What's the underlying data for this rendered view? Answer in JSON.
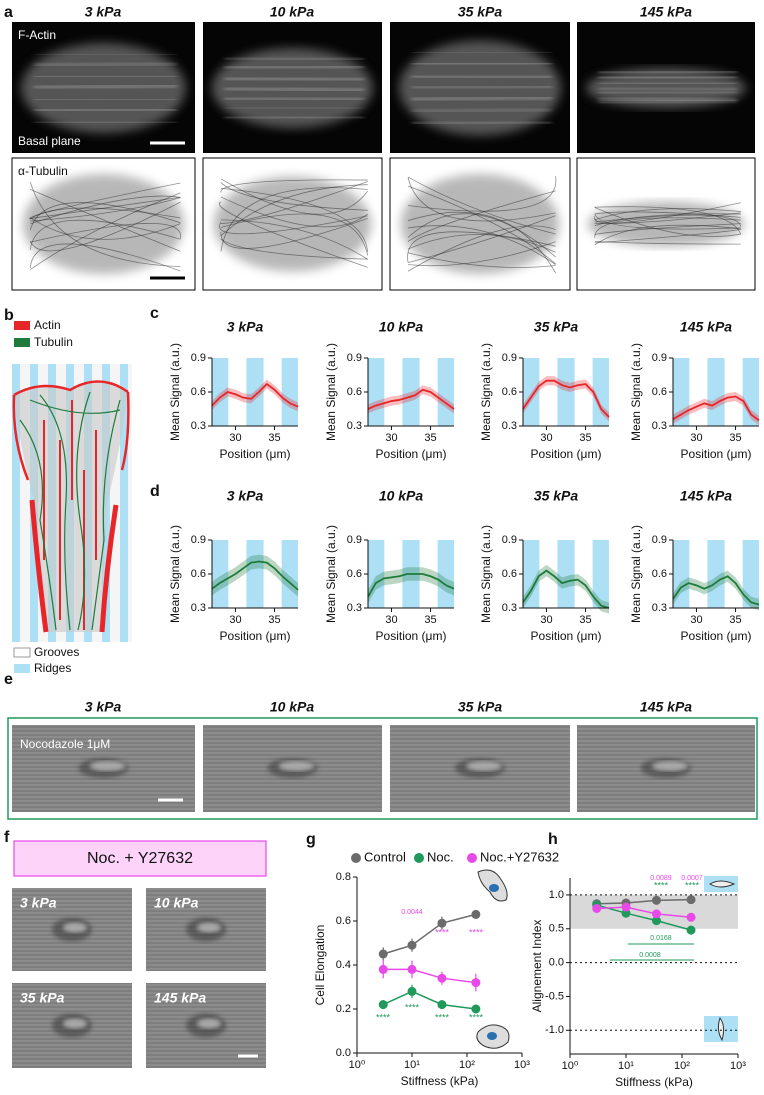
{
  "panel_labels": [
    "a",
    "b",
    "c",
    "d",
    "e",
    "f",
    "g",
    "h"
  ],
  "stiffness_labels": [
    "3 kPa",
    "10 kPa",
    "35 kPa",
    "145 kPa"
  ],
  "panel_a": {
    "actin_label": "F-Actin",
    "plane_label": "Basal plane",
    "tubulin_label": "α-Tubulin"
  },
  "panel_b": {
    "legend": [
      "Actin",
      "Tubulin",
      "Grooves",
      "Ridges"
    ]
  },
  "panel_e": {
    "label": "Nocodazole 1μM"
  },
  "panel_f": {
    "title": "Noc. + Y27632"
  },
  "chart_data": [
    {
      "type": "line",
      "title": "3 kPa",
      "x_label": "Position (μm)",
      "y_label": "Mean Signal (a.u.)",
      "x": [
        27,
        28,
        29,
        30,
        31,
        32,
        33,
        34,
        35,
        36,
        37,
        38
      ],
      "series": [
        {
          "color": "#e8262a",
          "values": [
            0.48,
            0.55,
            0.6,
            0.58,
            0.55,
            0.54,
            0.6,
            0.67,
            0.62,
            0.55,
            0.5,
            0.47
          ],
          "errors": [
            0.04,
            0.04,
            0.04,
            0.04,
            0.04,
            0.04,
            0.04,
            0.04,
            0.04,
            0.04,
            0.04,
            0.04
          ]
        }
      ],
      "xlim": [
        27,
        38
      ],
      "xticks": [
        30,
        35
      ],
      "ylim": [
        0.3,
        0.9
      ],
      "yticks": [
        0.3,
        0.6,
        0.9
      ]
    },
    {
      "type": "line",
      "title": "10 kPa",
      "x_label": "Position (μm)",
      "y_label": "Mean Signal (a.u.)",
      "x": [
        27,
        28,
        29,
        30,
        31,
        32,
        33,
        34,
        35,
        36,
        37,
        38
      ],
      "series": [
        {
          "color": "#e8262a",
          "values": [
            0.45,
            0.48,
            0.5,
            0.52,
            0.53,
            0.55,
            0.57,
            0.62,
            0.6,
            0.55,
            0.5,
            0.45
          ],
          "errors": [
            0.04,
            0.04,
            0.04,
            0.04,
            0.04,
            0.04,
            0.04,
            0.04,
            0.04,
            0.04,
            0.04,
            0.04
          ]
        }
      ],
      "xlim": [
        27,
        38
      ],
      "xticks": [
        30,
        35
      ],
      "ylim": [
        0.3,
        0.9
      ],
      "yticks": [
        0.3,
        0.6,
        0.9
      ]
    },
    {
      "type": "line",
      "title": "35 kPa",
      "x_label": "Position (μm)",
      "y_label": "Mean Signal (a.u.)",
      "x": [
        27,
        28,
        29,
        30,
        31,
        32,
        33,
        34,
        35,
        36,
        37,
        38
      ],
      "series": [
        {
          "color": "#e8262a",
          "values": [
            0.45,
            0.55,
            0.65,
            0.7,
            0.7,
            0.66,
            0.64,
            0.66,
            0.67,
            0.6,
            0.45,
            0.38
          ],
          "errors": [
            0.04,
            0.04,
            0.04,
            0.04,
            0.04,
            0.04,
            0.04,
            0.04,
            0.04,
            0.04,
            0.04,
            0.04
          ]
        }
      ],
      "xlim": [
        27,
        38
      ],
      "xticks": [
        30,
        35
      ],
      "ylim": [
        0.3,
        0.9
      ],
      "yticks": [
        0.3,
        0.6,
        0.9
      ]
    },
    {
      "type": "line",
      "title": "145 kPa",
      "x_label": "Position (μm)",
      "y_label": "Mean Signal (a.u.)",
      "x": [
        27,
        28,
        29,
        30,
        31,
        32,
        33,
        34,
        35,
        36,
        37,
        38
      ],
      "series": [
        {
          "color": "#e8262a",
          "values": [
            0.36,
            0.4,
            0.44,
            0.47,
            0.5,
            0.48,
            0.52,
            0.55,
            0.56,
            0.52,
            0.4,
            0.35
          ],
          "errors": [
            0.04,
            0.04,
            0.04,
            0.04,
            0.04,
            0.04,
            0.04,
            0.04,
            0.04,
            0.04,
            0.04,
            0.04
          ]
        }
      ],
      "xlim": [
        27,
        38
      ],
      "xticks": [
        30,
        35
      ],
      "ylim": [
        0.3,
        0.9
      ],
      "yticks": [
        0.3,
        0.6,
        0.9
      ]
    },
    {
      "type": "line",
      "title": "3 kPa",
      "x_label": "Position (μm)",
      "y_label": "Mean Signal (a.u.)",
      "x": [
        27,
        28,
        29,
        30,
        31,
        32,
        33,
        34,
        35,
        36,
        37,
        38
      ],
      "series": [
        {
          "color": "#1e7b3c",
          "values": [
            0.47,
            0.52,
            0.56,
            0.6,
            0.65,
            0.7,
            0.71,
            0.7,
            0.65,
            0.58,
            0.52,
            0.46
          ],
          "errors": [
            0.06,
            0.06,
            0.06,
            0.06,
            0.06,
            0.06,
            0.06,
            0.06,
            0.06,
            0.06,
            0.06,
            0.06
          ]
        }
      ],
      "xlim": [
        27,
        38
      ],
      "xticks": [
        30,
        35
      ],
      "ylim": [
        0.3,
        0.9
      ],
      "yticks": [
        0.3,
        0.6,
        0.9
      ]
    },
    {
      "type": "line",
      "title": "10 kPa",
      "x_label": "Position (μm)",
      "y_label": "Mean Signal (a.u.)",
      "x": [
        27,
        28,
        29,
        30,
        31,
        32,
        33,
        34,
        35,
        36,
        37,
        38
      ],
      "series": [
        {
          "color": "#1e7b3c",
          "values": [
            0.4,
            0.52,
            0.56,
            0.57,
            0.58,
            0.6,
            0.6,
            0.6,
            0.58,
            0.55,
            0.5,
            0.47
          ],
          "errors": [
            0.06,
            0.06,
            0.06,
            0.06,
            0.06,
            0.06,
            0.06,
            0.06,
            0.06,
            0.06,
            0.06,
            0.06
          ]
        }
      ],
      "xlim": [
        27,
        38
      ],
      "xticks": [
        30,
        35
      ],
      "ylim": [
        0.3,
        0.9
      ],
      "yticks": [
        0.3,
        0.6,
        0.9
      ]
    },
    {
      "type": "line",
      "title": "35 kPa",
      "x_label": "Position (μm)",
      "y_label": "Mean Signal (a.u.)",
      "x": [
        27,
        28,
        29,
        30,
        31,
        32,
        33,
        34,
        35,
        36,
        37,
        38
      ],
      "series": [
        {
          "color": "#1e7b3c",
          "values": [
            0.35,
            0.45,
            0.58,
            0.63,
            0.58,
            0.52,
            0.54,
            0.55,
            0.5,
            0.4,
            0.32,
            0.3
          ],
          "errors": [
            0.05,
            0.05,
            0.05,
            0.05,
            0.05,
            0.05,
            0.05,
            0.05,
            0.05,
            0.05,
            0.05,
            0.05
          ]
        }
      ],
      "xlim": [
        27,
        38
      ],
      "xticks": [
        30,
        35
      ],
      "ylim": [
        0.3,
        0.9
      ],
      "yticks": [
        0.3,
        0.6,
        0.9
      ]
    },
    {
      "type": "line",
      "title": "145 kPa",
      "x_label": "Position (μm)",
      "y_label": "Mean Signal (a.u.)",
      "x": [
        27,
        28,
        29,
        30,
        31,
        32,
        33,
        34,
        35,
        36,
        37,
        38
      ],
      "series": [
        {
          "color": "#1e7b3c",
          "values": [
            0.38,
            0.48,
            0.52,
            0.5,
            0.47,
            0.5,
            0.55,
            0.58,
            0.52,
            0.42,
            0.35,
            0.33
          ],
          "errors": [
            0.05,
            0.05,
            0.05,
            0.05,
            0.05,
            0.05,
            0.05,
            0.05,
            0.05,
            0.05,
            0.05,
            0.05
          ]
        }
      ],
      "xlim": [
        27,
        38
      ],
      "xticks": [
        30,
        35
      ],
      "ylim": [
        0.3,
        0.9
      ],
      "yticks": [
        0.3,
        0.6,
        0.9
      ]
    },
    {
      "type": "scatter",
      "x_label": "Stiffness (kPa)",
      "y_label": "Cell Elongation",
      "log_x": true,
      "x": [
        3,
        10,
        35,
        145
      ],
      "series": [
        {
          "name": "Control",
          "color": "#6b6b6b",
          "values": [
            0.45,
            0.49,
            0.59,
            0.63
          ],
          "errors": [
            0.03,
            0.03,
            0.03,
            0.02
          ]
        },
        {
          "name": "Noc.",
          "color": "#1f9a5a",
          "values": [
            0.22,
            0.28,
            0.22,
            0.2
          ],
          "errors": [
            0.02,
            0.03,
            0.02,
            0.02
          ]
        },
        {
          "name": "Noc.+Y27632",
          "color": "#e84ae8",
          "values": [
            0.38,
            0.38,
            0.34,
            0.32
          ],
          "errors": [
            0.04,
            0.04,
            0.03,
            0.04
          ]
        }
      ],
      "xlim": [
        1,
        1000
      ],
      "xticks": [
        {
          "value": 1,
          "label": "10⁰"
        },
        {
          "value": 10,
          "label": "10¹"
        },
        {
          "value": 100,
          "label": "10²"
        },
        {
          "value": 1000,
          "label": "10³"
        }
      ],
      "ylim": [
        0,
        0.8
      ],
      "yticks": [
        {
          "value": 0,
          "label": "0.0"
        },
        0.2,
        0.4,
        0.6,
        0.8
      ],
      "annotations": [
        {
          "text": "0.0044",
          "color": "#e84ae8"
        },
        {
          "text": "****",
          "color": "#e84ae8"
        },
        {
          "text": "****",
          "color": "#e84ae8"
        },
        {
          "text": "****",
          "color": "#1f9a5a"
        },
        {
          "text": "****",
          "color": "#1f9a5a"
        },
        {
          "text": "****",
          "color": "#1f9a5a"
        },
        {
          "text": "****",
          "color": "#1f9a5a"
        }
      ]
    },
    {
      "type": "scatter",
      "x_label": "Stiffness (kPa)",
      "y_label": "Alignement Index",
      "log_x": true,
      "x": [
        3,
        10,
        35,
        145
      ],
      "series": [
        {
          "name": "Control",
          "color": "#6b6b6b",
          "values": [
            0.87,
            0.88,
            0.92,
            0.93
          ],
          "errors": [
            0.03,
            0.03,
            0.03,
            0.03
          ]
        },
        {
          "name": "Noc.",
          "color": "#1f9a5a",
          "values": [
            0.85,
            0.73,
            0.62,
            0.48
          ],
          "errors": [
            0.04,
            0.04,
            0.05,
            0.07
          ]
        },
        {
          "name": "Noc.+Y27632",
          "color": "#e84ae8",
          "values": [
            0.8,
            0.82,
            0.72,
            0.67
          ],
          "errors": [
            0.05,
            0.04,
            0.05,
            0.06
          ]
        }
      ],
      "xlim": [
        1,
        1000
      ],
      "xticks": [
        {
          "value": 1,
          "label": "10⁰"
        },
        {
          "value": 10,
          "label": "10¹"
        },
        {
          "value": 100,
          "label": "10²"
        },
        {
          "value": 1000,
          "label": "10³"
        }
      ],
      "ylim": [
        -1.35,
        1.25
      ],
      "yticks": [
        {
          "value": -1,
          "label": "-1.0"
        },
        -0.5,
        {
          "value": 0,
          "label": "0.0"
        },
        0.5,
        {
          "value": 1,
          "label": "1.0"
        }
      ],
      "reference_lines": [
        1,
        0,
        -1
      ],
      "shaded_band": [
        0.5,
        1
      ],
      "annotations": [
        {
          "text": "0.0089",
          "color": "#e84ae8"
        },
        {
          "text": "0.0007",
          "color": "#e84ae8"
        },
        {
          "text": "****",
          "color": "#1f9a5a"
        },
        {
          "text": "****",
          "color": "#1f9a5a"
        },
        {
          "text": "0.0168",
          "color": "#1f9a5a"
        },
        {
          "text": "0.0008",
          "color": "#1f9a5a"
        }
      ]
    }
  ]
}
